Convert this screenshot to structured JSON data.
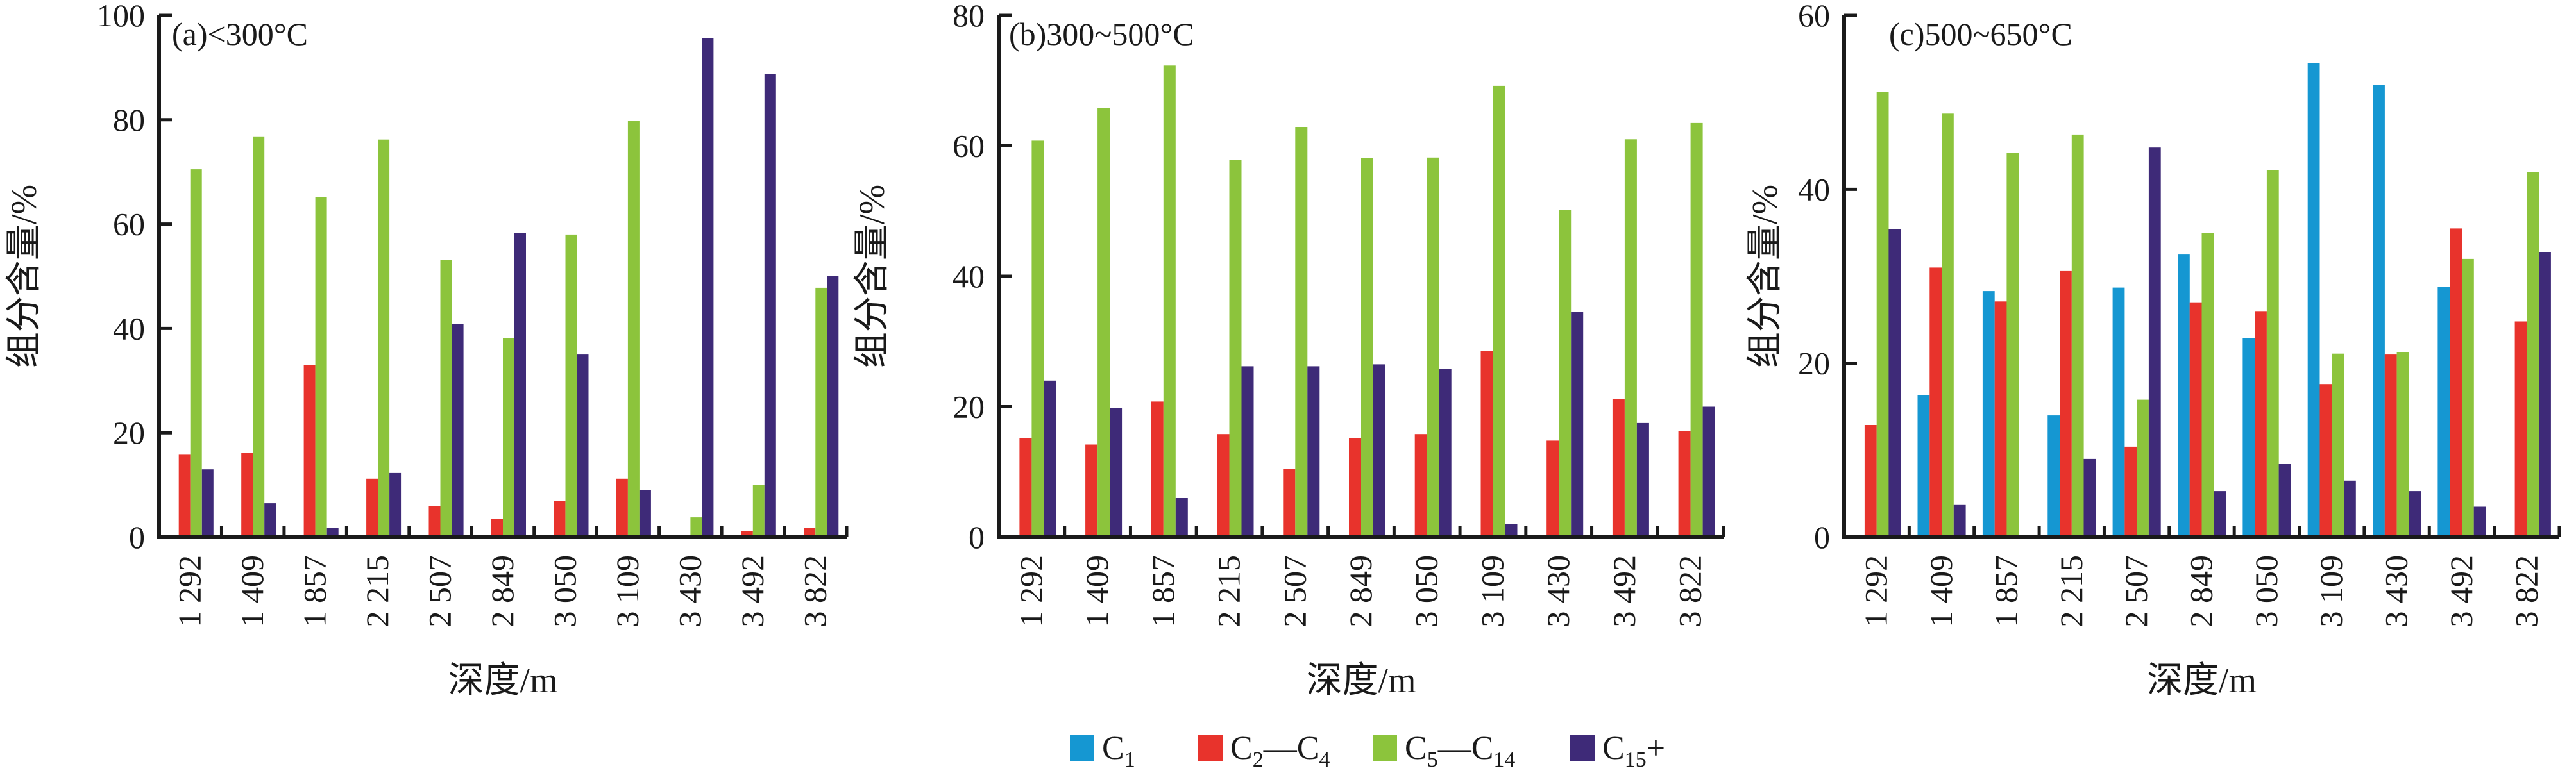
{
  "legend": {
    "entries": [
      {
        "sym": "C",
        "sub": "1",
        "sym2": "",
        "sub2": "",
        "tail": "",
        "color": "#1597d2"
      },
      {
        "sym": "C",
        "sub": "2",
        "sym2": "—C",
        "sub2": "4",
        "tail": "",
        "color": "#e8332c"
      },
      {
        "sym": "C",
        "sub": "5",
        "sym2": "—C",
        "sub2": "14",
        "tail": "",
        "color": "#8cc43c"
      },
      {
        "sym": "C",
        "sub": "15",
        "sym2": "",
        "sub2": "",
        "tail": "+",
        "color": "#3e2a78"
      }
    ]
  },
  "chart_data": [
    {
      "type": "bar",
      "title": "(a)<300°C",
      "xlabel": "深度/m",
      "ylabel": "组分含量/%",
      "ylim": [
        0,
        100
      ],
      "yticks": [
        0,
        20,
        40,
        60,
        80,
        100
      ],
      "categories": [
        "1 292",
        "1 409",
        "1 857",
        "2 215",
        "2 507",
        "2 849",
        "3 050",
        "3 109",
        "3 430",
        "3 492",
        "3 822"
      ],
      "series": [
        {
          "name": "C1",
          "color": "#1597d2",
          "values": [
            0,
            0,
            0,
            0,
            0,
            0,
            0,
            0,
            0,
            0,
            0
          ]
        },
        {
          "name": "C2—C4",
          "color": "#e8332c",
          "values": [
            15.8,
            16.2,
            33,
            11.2,
            6,
            3.5,
            7,
            11.2,
            0,
            1.2,
            1.8
          ]
        },
        {
          "name": "C5—C14",
          "color": "#8cc43c",
          "values": [
            70.5,
            76.8,
            65.2,
            76.2,
            53.2,
            38.2,
            58,
            79.8,
            3.8,
            10,
            47.8
          ]
        },
        {
          "name": "C15+",
          "color": "#3e2a78",
          "values": [
            13,
            6.5,
            1.8,
            12.3,
            40.8,
            58.3,
            35,
            9,
            95.7,
            88.7,
            50
          ]
        }
      ]
    },
    {
      "type": "bar",
      "title": "(b)300~500°C",
      "xlabel": "深度/m",
      "ylabel": "组分含量/%",
      "ylim": [
        0,
        80
      ],
      "yticks": [
        0,
        20,
        40,
        60,
        80
      ],
      "categories": [
        "1 292",
        "1 409",
        "1 857",
        "2 215",
        "2 507",
        "2 849",
        "3 050",
        "3 109",
        "3 430",
        "3 492",
        "3 822"
      ],
      "series": [
        {
          "name": "C1",
          "color": "#1597d2",
          "values": [
            0,
            0,
            0,
            0,
            0,
            0,
            0,
            0,
            0,
            0,
            0
          ]
        },
        {
          "name": "C2—C4",
          "color": "#e8332c",
          "values": [
            15.2,
            14.2,
            20.8,
            15.8,
            10.5,
            15.2,
            15.8,
            28.5,
            14.8,
            21.2,
            16.3
          ]
        },
        {
          "name": "C5—C14",
          "color": "#8cc43c",
          "values": [
            60.8,
            65.8,
            72.3,
            57.8,
            62.9,
            58.1,
            58.2,
            69.2,
            50.2,
            61,
            63.5
          ]
        },
        {
          "name": "C15+",
          "color": "#3e2a78",
          "values": [
            24,
            19.8,
            6,
            26.2,
            26.2,
            26.5,
            25.8,
            2,
            34.5,
            17.5,
            20
          ]
        }
      ]
    },
    {
      "type": "bar",
      "title": "(c)500~650°C",
      "xlabel": "深度/m",
      "ylabel": "组分含量/%",
      "ylim": [
        0,
        60
      ],
      "yticks": [
        0,
        20,
        40,
        60
      ],
      "categories": [
        "1 292",
        "1 409",
        "1 857",
        "2 215",
        "2 507",
        "2 849",
        "3 050",
        "3 109",
        "3 430",
        "3 492",
        "3 822"
      ],
      "series": [
        {
          "name": "C1",
          "color": "#1597d2",
          "values": [
            0,
            16.3,
            28.3,
            14,
            28.7,
            32.5,
            22.9,
            54.5,
            52,
            28.8,
            0
          ]
        },
        {
          "name": "C2—C4",
          "color": "#e8332c",
          "values": [
            12.9,
            31,
            27.1,
            30.6,
            10.4,
            27,
            26,
            17.6,
            21,
            35.5,
            24.8
          ]
        },
        {
          "name": "C5—C14",
          "color": "#8cc43c",
          "values": [
            51.2,
            48.7,
            44.2,
            46.3,
            15.8,
            35,
            42.2,
            21.1,
            21.3,
            32,
            42
          ]
        },
        {
          "name": "C15+",
          "color": "#3e2a78",
          "values": [
            35.4,
            3.7,
            0,
            9,
            44.8,
            5.3,
            8.4,
            6.5,
            5.3,
            3.5,
            32.8
          ]
        }
      ]
    }
  ]
}
